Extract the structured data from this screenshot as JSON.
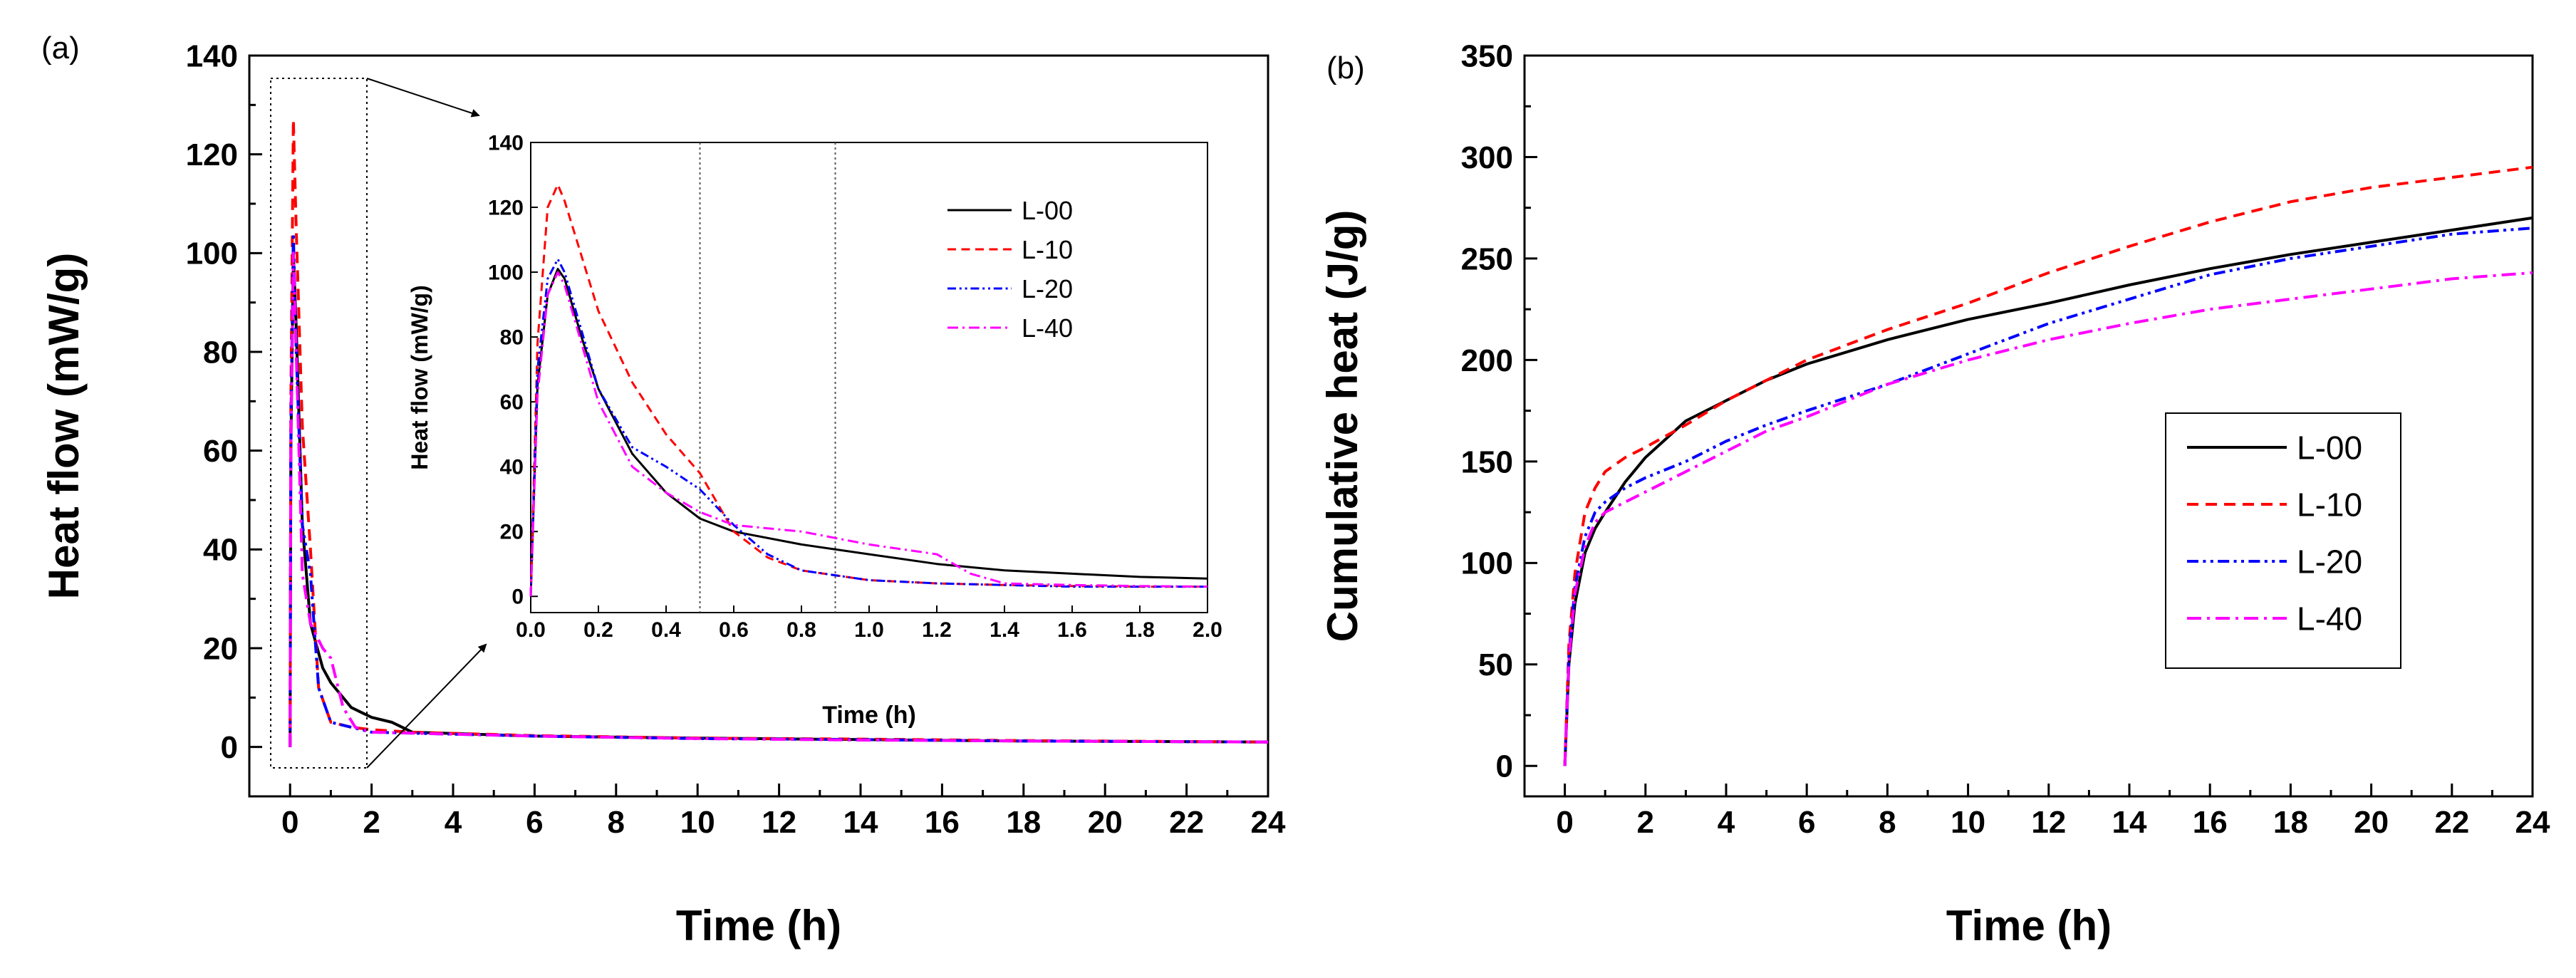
{
  "chart_data": [
    {
      "panel_label": "(a)",
      "type": "line",
      "title": "",
      "xlabel": "Time (h)",
      "ylabel": "Heat flow (mW/g)",
      "xlim": [
        -1,
        24
      ],
      "ylim": [
        -10,
        140
      ],
      "xticks": [
        0,
        2,
        4,
        6,
        8,
        10,
        12,
        14,
        16,
        18,
        20,
        22,
        24
      ],
      "yticks": [
        0,
        20,
        40,
        60,
        80,
        100,
        120,
        140
      ],
      "grid": false,
      "series": [
        {
          "name": "L-00",
          "color": "#000000",
          "dash": "solid",
          "x": [
            0,
            0.02,
            0.08,
            0.15,
            0.3,
            0.5,
            0.8,
            1.0,
            1.5,
            2.0,
            2.5,
            3,
            6,
            10,
            14,
            18,
            24
          ],
          "y": [
            0,
            60,
            100,
            85,
            45,
            25,
            16,
            13,
            8,
            6,
            5,
            3,
            2.2,
            1.8,
            1.5,
            1.2,
            1.0
          ]
        },
        {
          "name": "L-10",
          "color": "#ff0000",
          "dash": "dash",
          "x": [
            0,
            0.02,
            0.08,
            0.15,
            0.3,
            0.5,
            0.7,
            1.0,
            1.5,
            2.0,
            3,
            6,
            10,
            14,
            18,
            24
          ],
          "y": [
            0,
            70,
            127,
            105,
            65,
            40,
            12,
            5,
            4,
            3.5,
            3,
            2.3,
            1.8,
            1.6,
            1.3,
            1.0
          ]
        },
        {
          "name": "L-20",
          "color": "#0000ff",
          "dash": "dashdotdot",
          "x": [
            0,
            0.02,
            0.08,
            0.15,
            0.3,
            0.5,
            0.7,
            1.0,
            1.5,
            2.0,
            3,
            6,
            10,
            14,
            18,
            24
          ],
          "y": [
            0,
            65,
            104,
            80,
            45,
            35,
            12,
            5,
            4,
            3,
            2.8,
            2.2,
            1.7,
            1.5,
            1.2,
            1.0
          ]
        },
        {
          "name": "L-40",
          "color": "#ff00ff",
          "dash": "dashdot",
          "x": [
            0,
            0.02,
            0.08,
            0.15,
            0.3,
            0.5,
            0.8,
            1.0,
            1.3,
            1.6,
            2.0,
            3,
            6,
            10,
            14,
            18,
            24
          ],
          "y": [
            0,
            60,
            100,
            80,
            35,
            25,
            20,
            18,
            8,
            4,
            3,
            2.8,
            2.2,
            1.7,
            1.4,
            1.2,
            1.0
          ]
        }
      ],
      "inset": {
        "xlabel": "Time (h)",
        "ylabel": "Heat flow (mW/g)",
        "xlim": [
          0,
          2.0
        ],
        "ylim": [
          -5,
          140
        ],
        "xticks": [
          0.0,
          0.2,
          0.4,
          0.6,
          0.8,
          1.0,
          1.2,
          1.4,
          1.6,
          1.8,
          2.0
        ],
        "xtick_labels": [
          "0.0",
          "0.2",
          "0.4",
          "0.6",
          "0.8",
          "1.0",
          "1.2",
          "1.4",
          "1.6",
          "1.8",
          "2.0"
        ],
        "yticks": [
          0,
          20,
          40,
          60,
          80,
          100,
          120,
          140
        ],
        "vlines": [
          0.5,
          0.9
        ],
        "legend": [
          "L-00",
          "L-10",
          "L-20",
          "L-40"
        ],
        "series": [
          {
            "name": "L-00",
            "color": "#000000",
            "dash": "solid",
            "x": [
              0,
              0.02,
              0.05,
              0.08,
              0.1,
              0.15,
              0.2,
              0.3,
              0.4,
              0.5,
              0.6,
              0.8,
              1.0,
              1.2,
              1.4,
              1.6,
              1.8,
              2.0
            ],
            "y": [
              0,
              65,
              93,
              101,
              98,
              80,
              64,
              44,
              32,
              24,
              20,
              16,
              13,
              10,
              8,
              7,
              6,
              5.5
            ]
          },
          {
            "name": "L-10",
            "color": "#ff0000",
            "dash": "dash",
            "x": [
              0,
              0.02,
              0.05,
              0.08,
              0.1,
              0.15,
              0.2,
              0.3,
              0.4,
              0.5,
              0.6,
              0.7,
              0.8,
              1.0,
              1.2,
              1.4,
              1.6,
              1.8,
              2.0
            ],
            "y": [
              0,
              78,
              120,
              127,
              122,
              105,
              88,
              66,
              50,
              38,
              20,
              12,
              8,
              5,
              4,
              3.5,
              3.2,
              3.0,
              3.0
            ]
          },
          {
            "name": "L-20",
            "color": "#0000ff",
            "dash": "dashdotdot",
            "x": [
              0,
              0.02,
              0.05,
              0.08,
              0.1,
              0.15,
              0.2,
              0.3,
              0.4,
              0.5,
              0.6,
              0.7,
              0.8,
              1.0,
              1.2,
              1.4,
              1.6,
              1.8,
              2.0
            ],
            "y": [
              0,
              70,
              98,
              104,
              100,
              82,
              64,
              46,
              40,
              33,
              22,
              13,
              8,
              5,
              4,
              3.5,
              3.0,
              3.0,
              3.0
            ]
          },
          {
            "name": "L-40",
            "color": "#ff00ff",
            "dash": "dashdot",
            "x": [
              0,
              0.02,
              0.05,
              0.08,
              0.1,
              0.15,
              0.2,
              0.3,
              0.4,
              0.5,
              0.6,
              0.7,
              0.8,
              0.9,
              1.0,
              1.2,
              1.3,
              1.4,
              1.6,
              1.8,
              2.0
            ],
            "y": [
              0,
              62,
              93,
              100,
              96,
              78,
              60,
              40,
              32,
              26,
              22,
              21,
              20,
              18,
              16,
              13,
              7,
              4,
              3.5,
              3.2,
              3.0
            ]
          }
        ]
      }
    },
    {
      "panel_label": "(b)",
      "type": "line",
      "title": "",
      "xlabel": "Time (h)",
      "ylabel": "Cumulative heat (J/g)",
      "xlim": [
        -1,
        24
      ],
      "ylim": [
        -15,
        350
      ],
      "xticks": [
        0,
        2,
        4,
        6,
        8,
        10,
        12,
        14,
        16,
        18,
        20,
        22,
        24
      ],
      "yticks": [
        0,
        50,
        100,
        150,
        200,
        250,
        300,
        350
      ],
      "grid": false,
      "legend": [
        "L-00",
        "L-10",
        "L-20",
        "L-40"
      ],
      "legend_position": "center-right",
      "series": [
        {
          "name": "L-00",
          "color": "#000000",
          "dash": "solid",
          "x": [
            0,
            0.1,
            0.25,
            0.5,
            0.75,
            1,
            1.5,
            2,
            3,
            4,
            5,
            6,
            8,
            10,
            12,
            14,
            16,
            18,
            20,
            22,
            24
          ],
          "y": [
            0,
            50,
            80,
            105,
            117,
            125,
            140,
            152,
            170,
            180,
            190,
            198,
            210,
            220,
            228,
            237,
            245,
            252,
            258,
            264,
            270
          ]
        },
        {
          "name": "L-10",
          "color": "#ff0000",
          "dash": "dash",
          "x": [
            0,
            0.1,
            0.25,
            0.5,
            0.75,
            1,
            1.5,
            2,
            3,
            4,
            5,
            6,
            8,
            10,
            12,
            14,
            16,
            18,
            20,
            22,
            24
          ],
          "y": [
            0,
            60,
            95,
            125,
            137,
            145,
            152,
            157,
            168,
            180,
            190,
            200,
            215,
            228,
            243,
            256,
            268,
            278,
            285,
            290,
            295
          ]
        },
        {
          "name": "L-20",
          "color": "#0000ff",
          "dash": "dashdotdot",
          "x": [
            0,
            0.1,
            0.25,
            0.5,
            0.75,
            1,
            1.5,
            2,
            3,
            4,
            5,
            6,
            8,
            10,
            12,
            14,
            16,
            18,
            20,
            22,
            24
          ],
          "y": [
            0,
            55,
            88,
            113,
            125,
            130,
            137,
            142,
            150,
            160,
            168,
            175,
            188,
            203,
            218,
            230,
            242,
            250,
            256,
            262,
            265
          ]
        },
        {
          "name": "L-40",
          "color": "#ff00ff",
          "dash": "dashdot",
          "x": [
            0,
            0.1,
            0.25,
            0.5,
            0.75,
            1,
            1.5,
            2,
            3,
            4,
            5,
            6,
            8,
            10,
            12,
            14,
            16,
            18,
            20,
            22,
            24
          ],
          "y": [
            0,
            52,
            85,
            108,
            120,
            125,
            130,
            135,
            145,
            155,
            165,
            172,
            188,
            200,
            210,
            218,
            225,
            230,
            235,
            240,
            243
          ]
        }
      ]
    }
  ]
}
